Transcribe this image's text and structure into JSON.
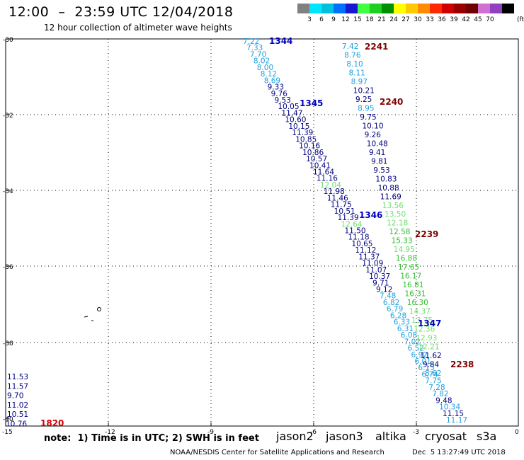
{
  "title": "12:00  –  23:59 UTC 12/04/2018",
  "subtitle": "12 hour collection of altimeter wave heights",
  "legend": {
    "colors": [
      "#808080",
      "#00e5ff",
      "#00c0e0",
      "#0070ff",
      "#1818d0",
      "#40ff40",
      "#20d020",
      "#009000",
      "#ffff00",
      "#ffc800",
      "#ff8c00",
      "#ff2800",
      "#d00000",
      "#980000",
      "#700000",
      "#d070d0",
      "#9040c0",
      "#000000"
    ],
    "ticks": [
      "3",
      "6",
      "9",
      "12",
      "15",
      "18",
      "21",
      "24",
      "27",
      "30",
      "33",
      "36",
      "39",
      "42",
      "45",
      "70"
    ],
    "unit": "(ft)"
  },
  "axes": {
    "lat_labels": [
      "-30",
      "-32",
      "-34",
      "-36",
      "-38",
      "-40"
    ],
    "lon_labels": [
      "-15",
      "-12",
      "-9",
      "-6",
      "-3",
      "0"
    ]
  },
  "island_label": "",
  "tracks": [
    {
      "id": "1344",
      "color": "#0000c0",
      "label_color": "#0000c0",
      "values": [
        {
          "v": "7.22",
          "c": "#1fa0e0"
        },
        {
          "v": "7.33",
          "c": "#1fa0e0"
        },
        {
          "v": "7.70",
          "c": "#1fa0e0"
        },
        {
          "v": "8.02",
          "c": "#1fa0e0"
        },
        {
          "v": "8.00",
          "c": "#1fa0e0"
        },
        {
          "v": "8.12",
          "c": "#1fa0e0"
        },
        {
          "v": "8.69",
          "c": "#1fa0e0"
        },
        {
          "v": "9.33",
          "c": "#000080"
        },
        {
          "v": "9.76",
          "c": "#000080"
        },
        {
          "v": "9.53",
          "c": "#000080"
        },
        {
          "v": "10.05",
          "c": "#000080"
        },
        {
          "v": "11.47",
          "c": "#000080"
        },
        {
          "v": "10.60",
          "c": "#000080"
        },
        {
          "v": "10.15",
          "c": "#000080"
        },
        {
          "v": "11.39",
          "c": "#000080"
        },
        {
          "v": "10.85",
          "c": "#000080"
        },
        {
          "v": "10.16",
          "c": "#000080"
        },
        {
          "v": "10.86",
          "c": "#000080"
        },
        {
          "v": "10.57",
          "c": "#000080"
        },
        {
          "v": "10.41",
          "c": "#000080"
        },
        {
          "v": "11.64",
          "c": "#000080"
        },
        {
          "v": "11.16",
          "c": "#000080"
        },
        {
          "v": "12.04",
          "c": "#70e070"
        },
        {
          "v": "11.98",
          "c": "#000080"
        },
        {
          "v": "11.46",
          "c": "#000080"
        },
        {
          "v": "11.75",
          "c": "#000080"
        },
        {
          "v": "10.51",
          "c": "#000080"
        },
        {
          "v": "11.39",
          "c": "#000080"
        },
        {
          "v": "12.64",
          "c": "#70e070"
        },
        {
          "v": "11.50",
          "c": "#000080"
        },
        {
          "v": "11.18",
          "c": "#000080"
        },
        {
          "v": "10.65",
          "c": "#000080"
        },
        {
          "v": "11.12",
          "c": "#000080"
        },
        {
          "v": "11.37",
          "c": "#000080"
        },
        {
          "v": "11.09",
          "c": "#000080"
        },
        {
          "v": "11.07",
          "c": "#000080"
        },
        {
          "v": "10.37",
          "c": "#000080"
        },
        {
          "v": "9.71",
          "c": "#000080"
        },
        {
          "v": "9.12",
          "c": "#000080"
        },
        {
          "v": "7.48",
          "c": "#1fa0e0"
        },
        {
          "v": "6.82",
          "c": "#1fa0e0"
        },
        {
          "v": "6.79",
          "c": "#1fa0e0"
        },
        {
          "v": "6.28",
          "c": "#1fa0e0"
        },
        {
          "v": "6.33",
          "c": "#1fa0e0"
        },
        {
          "v": "6.31",
          "c": "#1fa0e0"
        },
        {
          "v": "6.08",
          "c": "#1fa0e0"
        },
        {
          "v": "7.02",
          "c": "#1fa0e0"
        },
        {
          "v": "6.52",
          "c": "#1fa0e0"
        },
        {
          "v": "6.92",
          "c": "#1fa0e0"
        },
        {
          "v": "6.01",
          "c": "#1fa0e0"
        },
        {
          "v": "6.15",
          "c": "#1fa0e0"
        },
        {
          "v": "6.74",
          "c": "#1fa0e0"
        },
        {
          "v": "7.75",
          "c": "#1fa0e0"
        },
        {
          "v": "7.28",
          "c": "#1fa0e0"
        },
        {
          "v": "7.82",
          "c": "#1fa0e0"
        },
        {
          "v": "9.48",
          "c": "#000080"
        },
        {
          "v": "10.34",
          "c": "#1fa0e0"
        },
        {
          "v": "11.15",
          "c": "#000080"
        },
        {
          "v": "11.17",
          "c": "#1fa0e0"
        }
      ]
    },
    {
      "id": "2241",
      "color": "#800000"
    },
    {
      "id": "2240",
      "color": "#800000"
    },
    {
      "id": "2239",
      "color": "#800000"
    },
    {
      "id": "2238",
      "color": "#800000"
    },
    {
      "id": "1345",
      "color": "#0000c0"
    },
    {
      "id": "1346",
      "color": "#0000c0"
    },
    {
      "id": "1347",
      "color": "#0000c0"
    },
    {
      "id": "1820",
      "color": "#d00000"
    }
  ],
  "track2": [
    {
      "v": "7.42",
      "c": "#1fa0e0"
    },
    {
      "v": "8.76",
      "c": "#1fa0e0"
    },
    {
      "v": "8.10",
      "c": "#1fa0e0"
    },
    {
      "v": "8.11",
      "c": "#1fa0e0"
    },
    {
      "v": "8.97",
      "c": "#1fa0e0"
    },
    {
      "v": "10.21",
      "c": "#000080"
    },
    {
      "v": "9.25",
      "c": "#000080"
    },
    {
      "v": "8.95",
      "c": "#1fa0e0"
    },
    {
      "v": "9.75",
      "c": "#000080"
    },
    {
      "v": "10.10",
      "c": "#000080"
    },
    {
      "v": "9.26",
      "c": "#000080"
    },
    {
      "v": "10.48",
      "c": "#000080"
    },
    {
      "v": "9.41",
      "c": "#000080"
    },
    {
      "v": "9.81",
      "c": "#000080"
    },
    {
      "v": "9.53",
      "c": "#000080"
    },
    {
      "v": "10.83",
      "c": "#000080"
    },
    {
      "v": "10.88",
      "c": "#000080"
    },
    {
      "v": "11.69",
      "c": "#000080"
    },
    {
      "v": "13.56",
      "c": "#70e070"
    },
    {
      "v": "13.50",
      "c": "#70e070"
    },
    {
      "v": "12.18",
      "c": "#70e070"
    },
    {
      "v": "12.58",
      "c": "#30c030"
    },
    {
      "v": "15.33",
      "c": "#30c030"
    },
    {
      "v": "14.95",
      "c": "#70e070"
    },
    {
      "v": "16.88",
      "c": "#30c030"
    },
    {
      "v": "17.65",
      "c": "#30c030"
    },
    {
      "v": "16.17",
      "c": "#30c030"
    },
    {
      "v": "16.81",
      "c": "#30c030"
    },
    {
      "v": "16.31",
      "c": "#30c030"
    },
    {
      "v": "16.30",
      "c": "#30c030"
    },
    {
      "v": "14.37",
      "c": "#70e070"
    },
    {
      "v": "13.75",
      "c": "#70e070"
    },
    {
      "v": "12.36",
      "c": "#70e070"
    },
    {
      "v": "12.93",
      "c": "#70e070"
    },
    {
      "v": "12.21",
      "c": "#70e070"
    },
    {
      "v": "11.62",
      "c": "#000080"
    },
    {
      "v": "9.84",
      "c": "#000080"
    },
    {
      "v": "8.62",
      "c": "#1fa0e0"
    }
  ],
  "track3": [
    {
      "v": "11.53",
      "c": "#000080"
    },
    {
      "v": "11.57",
      "c": "#000080"
    },
    {
      "v": "9.70",
      "c": "#000080"
    },
    {
      "v": "11.02",
      "c": "#000080"
    },
    {
      "v": "10.51",
      "c": "#000080"
    },
    {
      "v": "10.76",
      "c": "#000080"
    }
  ],
  "satellites": [
    {
      "name": "jason2",
      "color": "#0000c0"
    },
    {
      "name": "jason3",
      "color": "#009000"
    },
    {
      "name": "altika",
      "color": "#ff8c00"
    },
    {
      "name": "cryosat",
      "color": "#d00000"
    },
    {
      "name": "s3a",
      "color": "#700000"
    }
  ],
  "note": "note:  1) Time is in UTC; 2) SWH is in feet",
  "credit": "NOAA/NESDIS Center for Satellite Applications and Research",
  "timestamp": "Dec  5 13:27:49 UTC 2018"
}
